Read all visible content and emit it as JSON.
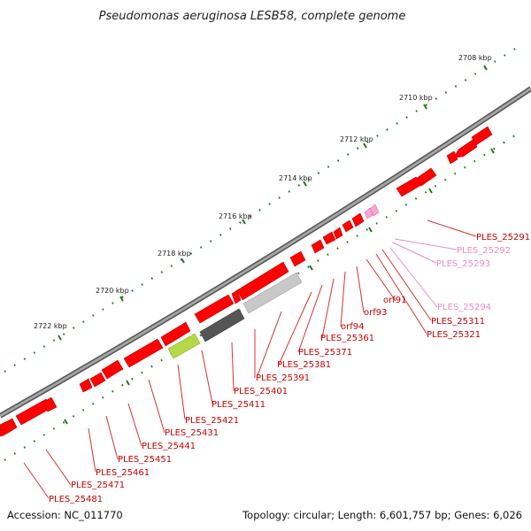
{
  "title": "Pseudomonas aeruginosa LESB58, complete genome",
  "ticks": [
    "2708 kbp",
    "2710 kbp",
    "2712 kbp",
    "2714 kbp",
    "2716 kbp",
    "2718 kbp",
    "2720 kbp",
    "2722 kbp"
  ],
  "genes": [
    {
      "name": "PLES_25291",
      "color": "#cc0000"
    },
    {
      "name": "PLES_25292",
      "color": "#f08bc0"
    },
    {
      "name": "PLES_25293",
      "color": "#f08bc0"
    },
    {
      "name": "PLES_25294",
      "color": "#f08bc0"
    },
    {
      "name": "orf91",
      "color": "#cc0000"
    },
    {
      "name": "PLES_25311",
      "color": "#cc0000"
    },
    {
      "name": "PLES_25321",
      "color": "#cc0000"
    },
    {
      "name": "orf93",
      "color": "#cc0000"
    },
    {
      "name": "orf94",
      "color": "#cc0000"
    },
    {
      "name": "PLES_25361",
      "color": "#cc0000"
    },
    {
      "name": "PLES_25371",
      "color": "#cc0000"
    },
    {
      "name": "PLES_25381",
      "color": "#cc0000"
    },
    {
      "name": "PLES_25391",
      "color": "#cc0000"
    },
    {
      "name": "PLES_25401",
      "color": "#cc0000"
    },
    {
      "name": "PLES_25411",
      "color": "#cc0000"
    },
    {
      "name": "PLES_25421",
      "color": "#cc0000"
    },
    {
      "name": "PLES_25431",
      "color": "#cc0000"
    },
    {
      "name": "PLES_25441",
      "color": "#cc0000"
    },
    {
      "name": "PLES_25451",
      "color": "#cc0000"
    },
    {
      "name": "PLES_25461",
      "color": "#cc0000"
    },
    {
      "name": "PLES_25471",
      "color": "#cc0000"
    },
    {
      "name": "PLES_25481",
      "color": "#cc0000"
    }
  ],
  "footer": {
    "accession": "Accession: NC_011770",
    "summary": "Topology: circular; Length: 6,601,757 bp; Genes: 6,026"
  },
  "colors": {
    "cds": "#ff0000",
    "label": "#cc0000",
    "rna": "#f08bc0",
    "backbone": "#808080",
    "tick": "#1f7a1f"
  }
}
